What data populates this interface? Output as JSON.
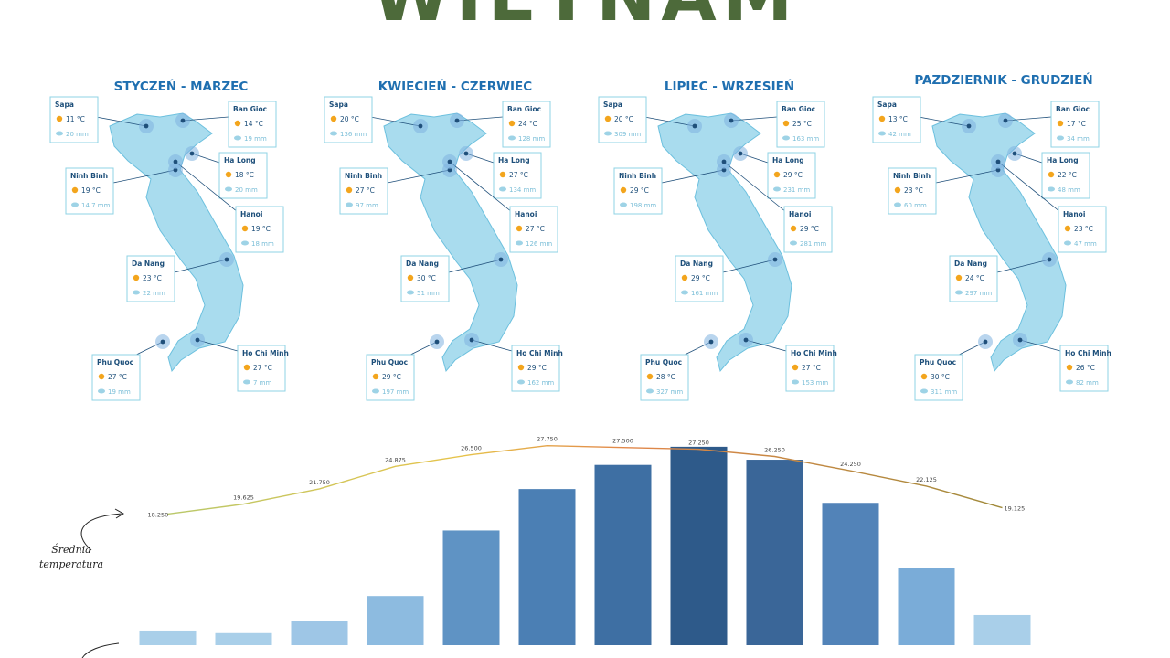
{
  "title": "WIETNAM",
  "panels": [
    {
      "title": "STYCZEŃ - MARZEC",
      "cities": [
        {
          "name": "Sapa",
          "temp": "11 °C",
          "rain": "20 mm"
        },
        {
          "name": "Ban Gioc",
          "temp": "14 °C",
          "rain": "19 mm"
        },
        {
          "name": "Ha Long",
          "temp": "18 °C",
          "rain": "20 mm"
        },
        {
          "name": "Ninh Binh",
          "temp": "19 °C",
          "rain": "14.7 mm"
        },
        {
          "name": "Hanoi",
          "temp": "19 °C",
          "rain": "18 mm"
        },
        {
          "name": "Da Nang",
          "temp": "23 °C",
          "rain": "22 mm"
        },
        {
          "name": "Phu Quoc",
          "temp": "27 °C",
          "rain": "19 mm"
        },
        {
          "name": "Ho Chi Minh",
          "temp": "27 °C",
          "rain": "7 mm"
        }
      ]
    },
    {
      "title": "KWIECIEŃ - CZERWIEC",
      "cities": [
        {
          "name": "Sapa",
          "temp": "20 °C",
          "rain": "136 mm"
        },
        {
          "name": "Ban Gioc",
          "temp": "24 °C",
          "rain": "128 mm"
        },
        {
          "name": "Ha Long",
          "temp": "27 °C",
          "rain": "134 mm"
        },
        {
          "name": "Ninh Binh",
          "temp": "27 °C",
          "rain": "97 mm"
        },
        {
          "name": "Hanoi",
          "temp": "27 °C",
          "rain": "126 mm"
        },
        {
          "name": "Da Nang",
          "temp": "30 °C",
          "rain": "51 mm"
        },
        {
          "name": "Phu Quoc",
          "temp": "29 °C",
          "rain": "197 mm"
        },
        {
          "name": "Ho Chi Minh",
          "temp": "29 °C",
          "rain": "162 mm"
        }
      ]
    },
    {
      "title": "LIPIEC - WRZESIEŃ",
      "cities": [
        {
          "name": "Sapa",
          "temp": "20 °C",
          "rain": "309 mm"
        },
        {
          "name": "Ban Gioc",
          "temp": "25 °C",
          "rain": "163 mm"
        },
        {
          "name": "Ha Long",
          "temp": "29 °C",
          "rain": "231 mm"
        },
        {
          "name": "Ninh Binh",
          "temp": "29 °C",
          "rain": "198 mm"
        },
        {
          "name": "Hanoi",
          "temp": "29 °C",
          "rain": "281 mm"
        },
        {
          "name": "Da Nang",
          "temp": "29 °C",
          "rain": "161 mm"
        },
        {
          "name": "Phu Quoc",
          "temp": "28 °C",
          "rain": "327 mm"
        },
        {
          "name": "Ho Chi Minh",
          "temp": "27 °C",
          "rain": "153 mm"
        }
      ]
    },
    {
      "title": "PAZDZIERNIK - GRUDZIEŃ",
      "cities": [
        {
          "name": "Sapa",
          "temp": "13 °C",
          "rain": "42 mm"
        },
        {
          "name": "Ban Gioc",
          "temp": "17 °C",
          "rain": "34 mm"
        },
        {
          "name": "Ha Long",
          "temp": "22 °C",
          "rain": "48 mm"
        },
        {
          "name": "Ninh Binh",
          "temp": "23 °C",
          "rain": "60 mm"
        },
        {
          "name": "Hanoi",
          "temp": "23 °C",
          "rain": "47 mm"
        },
        {
          "name": "Da Nang",
          "temp": "24 °C",
          "rain": "297 mm"
        },
        {
          "name": "Phu Quoc",
          "temp": "30 °C",
          "rain": "311 mm"
        },
        {
          "name": "Ho Chi Minh",
          "temp": "26 °C",
          "rain": "82 mm"
        }
      ]
    }
  ],
  "chart_data": {
    "type": "bar",
    "annotation": "Średnia temperatura",
    "ylim": [
      0,
      250
    ],
    "y2lim": [
      0,
      30
    ],
    "series": [
      {
        "type": "bar",
        "colors": [
          "#a9cfe9",
          "#a9cfe9",
          "#9ec6e6",
          "#8dbbe0",
          "#5f93c4",
          "#4b7fb4",
          "#3e6fa3",
          "#2e5a8a",
          "#3a6698",
          "#5283b8",
          "#7aacd8",
          "#a9cfe9"
        ],
        "values": [
          17,
          14,
          28,
          57,
          133,
          181,
          209,
          230,
          215,
          165,
          89,
          35
        ]
      },
      {
        "type": "line",
        "axis": "y2",
        "color": "#d8a13c",
        "values": [
          18.25,
          19.625,
          21.75,
          24.875,
          26.5,
          27.75,
          27.5,
          27.25,
          26.25,
          24.25,
          22.125,
          19.125
        ],
        "value_labels": [
          "18.250",
          "19.625",
          "21.750",
          "24.875",
          "26.500",
          "27.750",
          "27.500",
          "27.250",
          "26.250",
          "24.250",
          "22.125",
          "19.125"
        ]
      }
    ]
  }
}
